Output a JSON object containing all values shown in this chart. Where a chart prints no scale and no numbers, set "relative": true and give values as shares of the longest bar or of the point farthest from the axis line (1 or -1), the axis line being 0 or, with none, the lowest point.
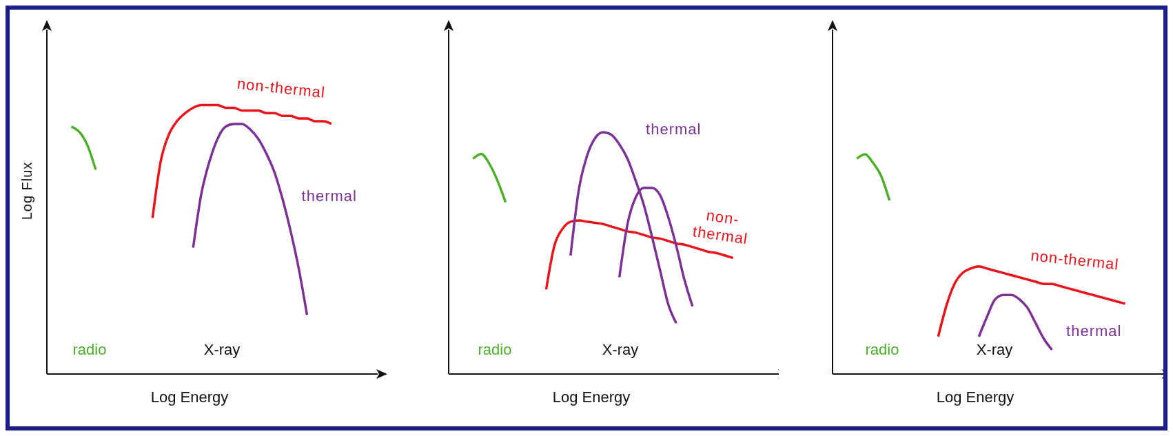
{
  "chart_data": [
    {
      "type": "line",
      "relative": true,
      "marker": "none",
      "xlabel": "Log Energy",
      "ylabel": "Log Flux",
      "annotations": [
        "X-ray"
      ],
      "categories": [
        null,
        null,
        null,
        null,
        null,
        null,
        null,
        null,
        null,
        null,
        null,
        null,
        null,
        null,
        null,
        null,
        null,
        null,
        null,
        null,
        null,
        null,
        null,
        null,
        null,
        null,
        null,
        null,
        null,
        null,
        null,
        null,
        null,
        null,
        null,
        null,
        null,
        null,
        null,
        null
      ],
      "series": [
        {
          "name": "radio",
          "color": "#4caf2a",
          "values": [
            null,
            null,
            null,
            0.92,
            0.9,
            0.85,
            0.76,
            null,
            null,
            null,
            null,
            null,
            null,
            null,
            null,
            null,
            null,
            null,
            null,
            null,
            null,
            null,
            null,
            null,
            null,
            null,
            null,
            null,
            null,
            null,
            null,
            null,
            null,
            null,
            null,
            null,
            null,
            null,
            null,
            null
          ]
        },
        {
          "name": "non-thermal",
          "color": "#e8141c",
          "values": [
            null,
            null,
            null,
            null,
            null,
            null,
            null,
            null,
            null,
            null,
            null,
            null,
            null,
            0.58,
            0.79,
            0.89,
            0.94,
            0.97,
            0.99,
            1,
            1,
            1,
            0.99,
            0.99,
            0.98,
            0.98,
            0.98,
            0.97,
            0.97,
            0.96,
            0.96,
            0.95,
            0.95,
            0.94,
            0.94,
            0.93,
            null,
            null,
            null,
            null
          ]
        },
        {
          "name": "thermal",
          "color": "#7b3294",
          "values": [
            null,
            null,
            null,
            null,
            null,
            null,
            null,
            null,
            null,
            null,
            null,
            null,
            null,
            null,
            null,
            null,
            null,
            null,
            0.47,
            0.67,
            0.79,
            0.875,
            0.92,
            0.93,
            0.93,
            0.91,
            0.875,
            0.82,
            0.75,
            0.65,
            0.53,
            0.39,
            0.22,
            null,
            null,
            null,
            null,
            null,
            null,
            null
          ]
        }
      ]
    },
    {
      "type": "line",
      "relative": true,
      "marker": "none",
      "xlabel": "Log Energy",
      "annotations": [
        "X-ray"
      ],
      "categories": [
        null,
        null,
        null,
        null,
        null,
        null,
        null,
        null,
        null,
        null,
        null,
        null,
        null,
        null,
        null,
        null,
        null,
        null,
        null,
        null,
        null,
        null,
        null,
        null,
        null,
        null,
        null,
        null,
        null,
        null,
        null,
        null,
        null,
        null,
        null,
        null,
        null,
        null,
        null,
        null
      ],
      "series": [
        {
          "name": "radio",
          "color": "#4caf2a",
          "values": [
            null,
            null,
            null,
            0.89,
            0.91,
            0.87,
            0.8,
            0.71,
            null,
            null,
            null,
            null,
            null,
            null,
            null,
            null,
            null,
            null,
            null,
            null,
            null,
            null,
            null,
            null,
            null,
            null,
            null,
            null,
            null,
            null,
            null,
            null,
            null,
            null,
            null,
            null,
            null,
            null,
            null,
            null
          ]
        },
        {
          "name": "non-thermal",
          "color": "#e8141c",
          "values": [
            null,
            null,
            null,
            null,
            null,
            null,
            null,
            null,
            null,
            null,
            null,
            null,
            0.35,
            0.53,
            0.6,
            0.63,
            0.635,
            0.63,
            0.625,
            0.62,
            0.61,
            0.6,
            0.59,
            0.585,
            0.575,
            0.565,
            0.56,
            0.55,
            0.54,
            0.535,
            0.525,
            0.515,
            0.505,
            0.5,
            0.49,
            0.48,
            null,
            null,
            null,
            null
          ]
        },
        {
          "name": "thermal",
          "color": "#7b3294",
          "values": [
            null,
            null,
            null,
            null,
            null,
            null,
            null,
            null,
            null,
            null,
            null,
            null,
            null,
            null,
            null,
            0.49,
            0.76,
            0.9,
            0.975,
            1,
            0.99,
            0.95,
            0.89,
            0.8,
            0.7,
            0.57,
            0.43,
            0.29,
            0.21,
            null,
            null,
            null,
            null,
            null,
            null,
            null,
            null,
            null,
            null,
            null
          ]
        },
        {
          "color": "#7b3294",
          "values": [
            null,
            null,
            null,
            null,
            null,
            null,
            null,
            null,
            null,
            null,
            null,
            null,
            null,
            null,
            null,
            null,
            null,
            null,
            null,
            null,
            null,
            0.4,
            0.62,
            0.73,
            0.77,
            0.77,
            0.74,
            0.65,
            0.53,
            0.39,
            0.28,
            null,
            null,
            null,
            null,
            null,
            null,
            null,
            null,
            null
          ]
        }
      ]
    },
    {
      "type": "line",
      "relative": true,
      "marker": "none",
      "xlabel": "Log Energy",
      "annotations": [
        "X-ray"
      ],
      "categories": [
        null,
        null,
        null,
        null,
        null,
        null,
        null,
        null,
        null,
        null,
        null,
        null,
        null,
        null,
        null,
        null,
        null,
        null,
        null,
        null,
        null,
        null,
        null,
        null,
        null,
        null,
        null,
        null,
        null,
        null,
        null,
        null,
        null,
        null,
        null,
        null,
        null,
        null,
        null,
        null
      ],
      "series": [
        {
          "name": "radio",
          "color": "#4caf2a",
          "values": [
            null,
            null,
            null,
            0.98,
            1,
            0.96,
            0.9,
            0.79,
            null,
            null,
            null,
            null,
            null,
            null,
            null,
            null,
            null,
            null,
            null,
            null,
            null,
            null,
            null,
            null,
            null,
            null,
            null,
            null,
            null,
            null,
            null,
            null,
            null,
            null,
            null,
            null,
            null,
            null,
            null,
            null
          ]
        },
        {
          "name": "non-thermal",
          "color": "#e8141c",
          "values": [
            null,
            null,
            null,
            null,
            null,
            null,
            null,
            null,
            null,
            null,
            null,
            null,
            null,
            0.17,
            0.31,
            0.41,
            0.46,
            0.48,
            0.49,
            0.48,
            0.47,
            0.46,
            0.45,
            0.44,
            0.43,
            0.42,
            0.41,
            0.41,
            0.4,
            0.39,
            0.38,
            0.37,
            0.36,
            0.35,
            0.34,
            0.33,
            0.32,
            null,
            null,
            null
          ]
        },
        {
          "name": "thermal",
          "color": "#7b3294",
          "values": [
            null,
            null,
            null,
            null,
            null,
            null,
            null,
            null,
            null,
            null,
            null,
            null,
            null,
            null,
            null,
            null,
            null,
            null,
            0.17,
            0.26,
            0.34,
            0.36,
            0.36,
            0.34,
            0.3,
            0.23,
            0.16,
            0.11,
            null,
            null,
            null,
            null,
            null,
            null,
            null,
            null,
            null,
            null,
            null,
            null
          ]
        }
      ]
    }
  ]
}
